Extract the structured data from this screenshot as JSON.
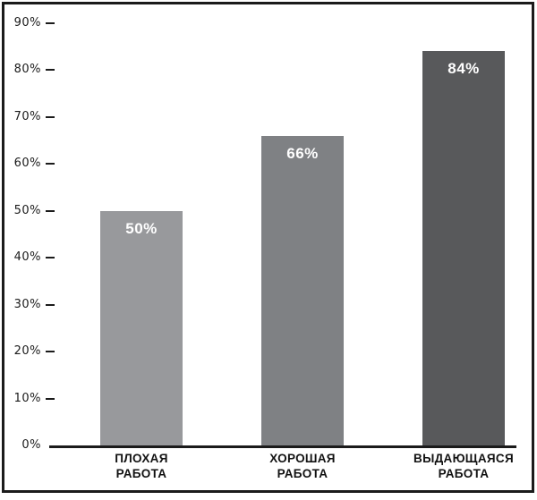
{
  "chart_data": {
    "type": "bar",
    "title": "",
    "categories": [
      [
        "ПЛОХАЯ",
        "РАБОТА"
      ],
      [
        "ХОРОШАЯ",
        "РАБОТА"
      ],
      [
        "ВЫДАЮЩАЯСЯ",
        "РАБОТА"
      ]
    ],
    "values": [
      50,
      66,
      84
    ],
    "value_labels": [
      "50%",
      "66%",
      "84%"
    ],
    "bar_colors": [
      "#98999c",
      "#7f8184",
      "#58595b"
    ],
    "value_label_color": "#ffffff",
    "ytick_values": [
      90,
      80,
      70,
      60,
      50,
      40,
      30,
      20,
      10,
      0
    ],
    "ytick_labels": [
      "90%",
      "80%",
      "70%",
      "60%",
      "50%",
      "40%",
      "30%",
      "20%",
      "10%",
      "0%"
    ],
    "ylim": [
      0,
      90
    ],
    "grid": false,
    "legend": false,
    "axis_color": "#1b1b1b",
    "frame_color": "#1b1b1b",
    "background_color": "#ffffff"
  }
}
